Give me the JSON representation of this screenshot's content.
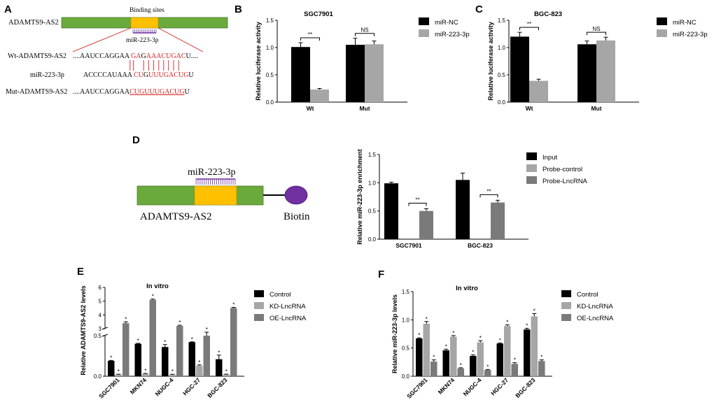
{
  "panels": {
    "A": "A",
    "B": "B",
    "C": "C",
    "D": "D",
    "E": "E",
    "F": "F"
  },
  "colors": {
    "black": "#000000",
    "light": "#a6a6a6",
    "dark": "#7a7a7a",
    "green": "#6aaa3c",
    "yellow": "#ffc000",
    "purple": "#7030a0",
    "red": "#d42020"
  },
  "panel_a": {
    "gene_label": "ADAMTS9-AS2",
    "binding_sites_label": "Binding sites",
    "mirna_label": "miR-223-3p",
    "wt_label": "Wt-ADAMTS9-AS2",
    "wt_prefix": "....AAUCCAGGAA",
    "wt_seq": [
      "G",
      "A",
      "G",
      "A",
      "A",
      "A",
      "C",
      "U",
      "G",
      "A",
      "C",
      "U"
    ],
    "wt_red": [
      true,
      true,
      false,
      true,
      true,
      true,
      true,
      true,
      true,
      true,
      true,
      false
    ],
    "wt_suffix": "....",
    "mir_label": "miR-223-3p",
    "mir_prefix": "ACCCCAUAAA",
    "mir_seq": [
      "C",
      "U",
      "G",
      "U",
      "U",
      "U",
      "G",
      "A",
      "C",
      "U",
      "G",
      "U"
    ],
    "mir_red": [
      true,
      true,
      false,
      true,
      true,
      true,
      true,
      true,
      true,
      true,
      true,
      false
    ],
    "bond_mask": [
      true,
      true,
      false,
      true,
      true,
      true,
      true,
      true,
      true,
      true,
      true,
      false
    ],
    "mut_label": "Mut-ADAMTS9-AS2",
    "mut_prefix": "....AAUCCAGGAA",
    "mut_seq": "CUGUUUGACUG",
    "mut_suffix": "U"
  },
  "panel_d": {
    "mirna_label": "miR-223-3p",
    "gene_label": "ADAMTS9-AS2",
    "biotin_label": "Biotin"
  },
  "chart_data": [
    {
      "id": "B",
      "type": "bar",
      "title": "SGC7901",
      "categories": [
        "Wt",
        "Mut"
      ],
      "series": [
        {
          "name": "miR-NC",
          "color": "black",
          "values": [
            1.01,
            1.05
          ],
          "errors": [
            0.08,
            0.12
          ]
        },
        {
          "name": "miR-223-3p",
          "color": "light",
          "values": [
            0.23,
            1.06
          ],
          "errors": [
            0.02,
            0.06
          ]
        }
      ],
      "ylabel": "Relative luciferase activity",
      "ylim": [
        0,
        1.5
      ],
      "yticks": [
        "0.0",
        "0.5",
        "1.0",
        "1.5"
      ],
      "annotations": [
        {
          "category": 0,
          "text": "**"
        },
        {
          "category": 1,
          "text": "NS"
        }
      ]
    },
    {
      "id": "C",
      "type": "bar",
      "title": "BGC-823",
      "categories": [
        "Wt",
        "Mut"
      ],
      "series": [
        {
          "name": "miR-NC",
          "color": "black",
          "values": [
            1.2,
            1.06
          ],
          "errors": [
            0.08,
            0.06
          ]
        },
        {
          "name": "miR-223-3p",
          "color": "light",
          "values": [
            0.39,
            1.13
          ],
          "errors": [
            0.03,
            0.06
          ]
        }
      ],
      "ylabel": "Relative luciferase activity",
      "ylim": [
        0,
        1.5
      ],
      "yticks": [
        "0.0",
        "0.5",
        "1.0",
        "1.5"
      ],
      "annotations": [
        {
          "category": 0,
          "text": "**"
        },
        {
          "category": 1,
          "text": "NS"
        }
      ]
    },
    {
      "id": "D",
      "type": "bar",
      "title": "",
      "categories": [
        "SGC7901",
        "BGC-823"
      ],
      "series": [
        {
          "name": "Input",
          "color": "black",
          "values": [
            0.99,
            1.05
          ],
          "errors": [
            0.02,
            0.12
          ]
        },
        {
          "name": "Probe-control",
          "color": "light",
          "values": [
            0,
            0
          ],
          "errors": [
            0,
            0
          ]
        },
        {
          "name": "Probe-LncRNA",
          "color": "dark",
          "values": [
            0.5,
            0.65
          ],
          "errors": [
            0.04,
            0.04
          ]
        }
      ],
      "ylabel": "Relative miR-223-3p enrichment",
      "ylim": [
        0,
        1.5
      ],
      "yticks": [
        "0.0",
        "0.5",
        "1.0",
        "1.5"
      ],
      "annotations": [
        {
          "category": 0,
          "text": "**"
        },
        {
          "category": 1,
          "text": "**"
        }
      ]
    },
    {
      "id": "E",
      "type": "bar",
      "title": "In vitro",
      "broken_axis": true,
      "categories": [
        "SGC7901",
        "MKN74",
        "NUGC-4",
        "HGC-27",
        "BGC-823"
      ],
      "series": [
        {
          "name": "Control",
          "color": "black",
          "values": [
            0.19,
            0.4,
            0.36,
            0.42,
            0.21
          ],
          "errors": [
            0.005,
            0.006,
            0.03,
            0.004,
            0.05
          ]
        },
        {
          "name": "KD-LncRNA",
          "color": "light",
          "values": [
            0.02,
            0.03,
            0.02,
            0.13,
            0.02
          ],
          "errors": [
            0.005,
            0.005,
            0.004,
            0.01,
            0.005
          ]
        },
        {
          "name": "OE-LncRNA",
          "color": "dark",
          "values": [
            3.4,
            5.1,
            3.2,
            0.5,
            4.5
          ],
          "errors": [
            0.1,
            0.05,
            0.05,
            0.01,
            0.05
          ]
        }
      ],
      "ylabel": "Relative ADAMTS9-AS2 levels",
      "lower_ylim": [
        0,
        0.5
      ],
      "upper_ylim": [
        3,
        6
      ],
      "yticks_lower": [
        "0.0",
        "0.5"
      ],
      "yticks_upper": [
        "3",
        "4",
        "5",
        "6"
      ],
      "star": "*"
    },
    {
      "id": "F",
      "type": "bar",
      "title": "In vitro",
      "categories": [
        "SGC7901",
        "MKN74",
        "NUGC-4",
        "HGC-27",
        "BGC-823"
      ],
      "series": [
        {
          "name": "Control",
          "color": "black",
          "values": [
            0.67,
            0.46,
            0.36,
            0.58,
            0.83
          ],
          "errors": [
            0.01,
            0.02,
            0.02,
            0.01,
            0.02
          ]
        },
        {
          "name": "KD-LncRNA",
          "color": "light",
          "values": [
            0.93,
            0.7,
            0.6,
            0.89,
            1.06
          ],
          "errors": [
            0.04,
            0.02,
            0.03,
            0.02,
            0.05
          ]
        },
        {
          "name": "OE-LncRNA",
          "color": "dark",
          "values": [
            0.26,
            0.14,
            0.11,
            0.22,
            0.27
          ],
          "errors": [
            0.03,
            0.01,
            0.01,
            0.02,
            0.02
          ]
        }
      ],
      "ylabel": "Relative miR-223-3p levels",
      "ylim": [
        0,
        1.5
      ],
      "yticks": [
        "0.0",
        "0.5",
        "1.0",
        "1.5"
      ],
      "star": "*"
    }
  ]
}
